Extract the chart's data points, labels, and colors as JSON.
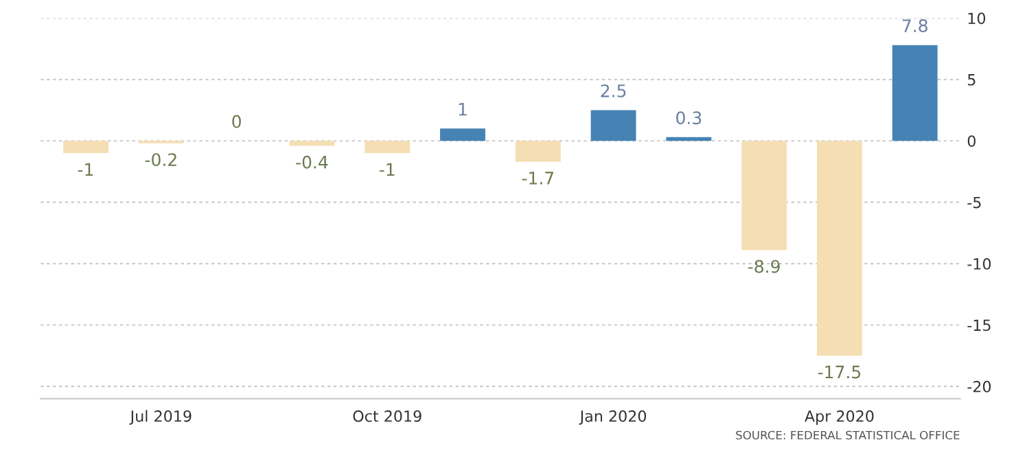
{
  "chart_data": {
    "type": "bar",
    "categories": [
      null,
      "Jul 2019",
      null,
      null,
      "Oct 2019",
      null,
      null,
      "Jan 2020",
      null,
      null,
      "Apr 2020",
      null
    ],
    "values": [
      -1,
      -0.2,
      0,
      -0.4,
      -1,
      1,
      -1.7,
      2.5,
      0.3,
      -8.9,
      -17.5,
      7.8
    ],
    "colors": [
      "#f5deb3",
      "#f5deb3",
      "#f5deb3",
      "#f5deb3",
      "#f5deb3",
      "#4682b4",
      "#f5deb3",
      "#4682b4",
      "#4682b4",
      "#f5deb3",
      "#f5deb3",
      "#4682b4"
    ],
    "ylim": [
      -21,
      10
    ],
    "yticks": [
      -20,
      -15,
      -10,
      -5,
      0,
      5,
      10
    ],
    "grid": "y",
    "data_labels": true,
    "annotations": [
      "SOURCE: FEDERAL STATISTICAL OFFICE"
    ]
  }
}
